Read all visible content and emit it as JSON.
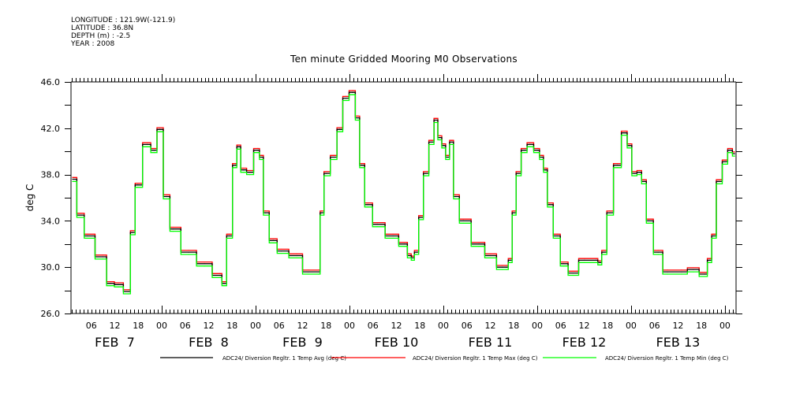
{
  "header": {
    "meta_lines": [
      "LONGITUDE : 121.9W(-121.9)",
      "LATITUDE : 36.8N",
      "DEPTH (m) : -2.5",
      "YEAR : 2008"
    ]
  },
  "chart_data": {
    "type": "line",
    "title": "Ten minute Gridded Mooring M0 Observations",
    "xlabel": "",
    "ylabel": "deg C",
    "ylim": [
      26.0,
      46.0
    ],
    "yticks": [
      "26.0",
      "30.0",
      "34.0",
      "38.0",
      "42.0",
      "46.0"
    ],
    "ytick_values": [
      26,
      30,
      34,
      38,
      42,
      46
    ],
    "x_units": "hours since FEB 7 00:00 (2008)",
    "xlim": [
      1,
      169
    ],
    "hour_labels": [
      "06",
      "12",
      "18",
      "00"
    ],
    "day_labels": [
      "FEB  7",
      "FEB  8",
      "FEB  9",
      "FEB 10",
      "FEB 11",
      "FEB 12",
      "FEB 13"
    ],
    "grid": false,
    "legend_position": "bottom",
    "series": [
      {
        "name": "ADC24/ Diversion Regltr. 1 Temp Avg (deg C)",
        "color": "#000000",
        "x": [
          1.2,
          3.4,
          5.0,
          8.9,
          10.9,
          12.9,
          15.5,
          16.5,
          17.9,
          20.3,
          22.1,
          23.5,
          25.3,
          26.9,
          30.9,
          34.9,
          38.9,
          39.9,
          41.3,
          42.9,
          43.5,
          44.9,
          46.5,
          48.5,
          49.5,
          50.5,
          52.5,
          54.5,
          58.5,
          61.5,
          64.1,
          64.9,
          66.1,
          68.1,
          69.5,
          71.1,
          72.7,
          72.9,
          74.1,
          75.1,
          76.7,
          79.1,
          83.1,
          86.1,
          87.5,
          88.1,
          89.1,
          90.3,
          91.5,
          93.1,
          94.1,
          95.1,
          96.1,
          97.1,
          98.1,
          99.1,
          101.1,
          105.1,
          108.1,
          111.1,
          112.1,
          113.1,
          114.1,
          115.1,
          116.7,
          118.1,
          120.1,
          121.1,
          122.1,
          123.1,
          125.1,
          126.7,
          129.1,
          132.1,
          135.1,
          135.9,
          137.1,
          138.5,
          140.5,
          142.5,
          143.5,
          144.9,
          146.1,
          147.3,
          148.5,
          150.9,
          153.3,
          156.9,
          159.9,
          162.9,
          164.1,
          165.1,
          166.5,
          168.1,
          169.3,
          170.5
        ],
        "y": [
          37.6,
          34.5,
          32.7,
          30.9,
          28.6,
          28.5,
          27.9,
          33.0,
          37.1,
          40.6,
          40.1,
          41.9,
          36.1,
          33.3,
          31.3,
          30.3,
          29.3,
          28.6,
          32.7,
          38.8,
          40.4,
          38.4,
          38.2,
          40.1,
          39.5,
          34.7,
          32.3,
          31.4,
          31.0,
          29.6,
          29.6,
          34.7,
          38.1,
          39.5,
          41.9,
          44.6,
          45.1,
          45.1,
          42.9,
          38.8,
          35.4,
          33.7,
          32.7,
          32.0,
          31.0,
          30.8,
          31.3,
          34.3,
          38.1,
          40.8,
          42.7,
          41.2,
          40.5,
          39.5,
          40.8,
          36.1,
          34.0,
          32.0,
          31.0,
          30.0,
          30.0,
          30.6,
          34.7,
          38.1,
          40.1,
          40.6,
          40.1,
          39.5,
          38.4,
          35.4,
          32.7,
          30.3,
          29.5,
          30.6,
          30.6,
          30.4,
          31.3,
          34.7,
          38.8,
          41.6,
          40.5,
          38.1,
          38.2,
          37.4,
          34.0,
          31.3,
          29.6,
          29.6,
          29.8,
          29.4,
          30.6,
          32.7,
          37.4,
          39.1,
          40.1,
          39.8
        ]
      },
      {
        "name": "ADC24/ Diversion Regltr. 1 Temp Max (deg C)",
        "color": "#ff0000",
        "offset_from_avg": 0.15
      },
      {
        "name": "ADC24/ Diversion Regltr. 1 Temp Min (deg C)",
        "color": "#00ff00",
        "offset_from_avg": -0.2
      }
    ]
  }
}
